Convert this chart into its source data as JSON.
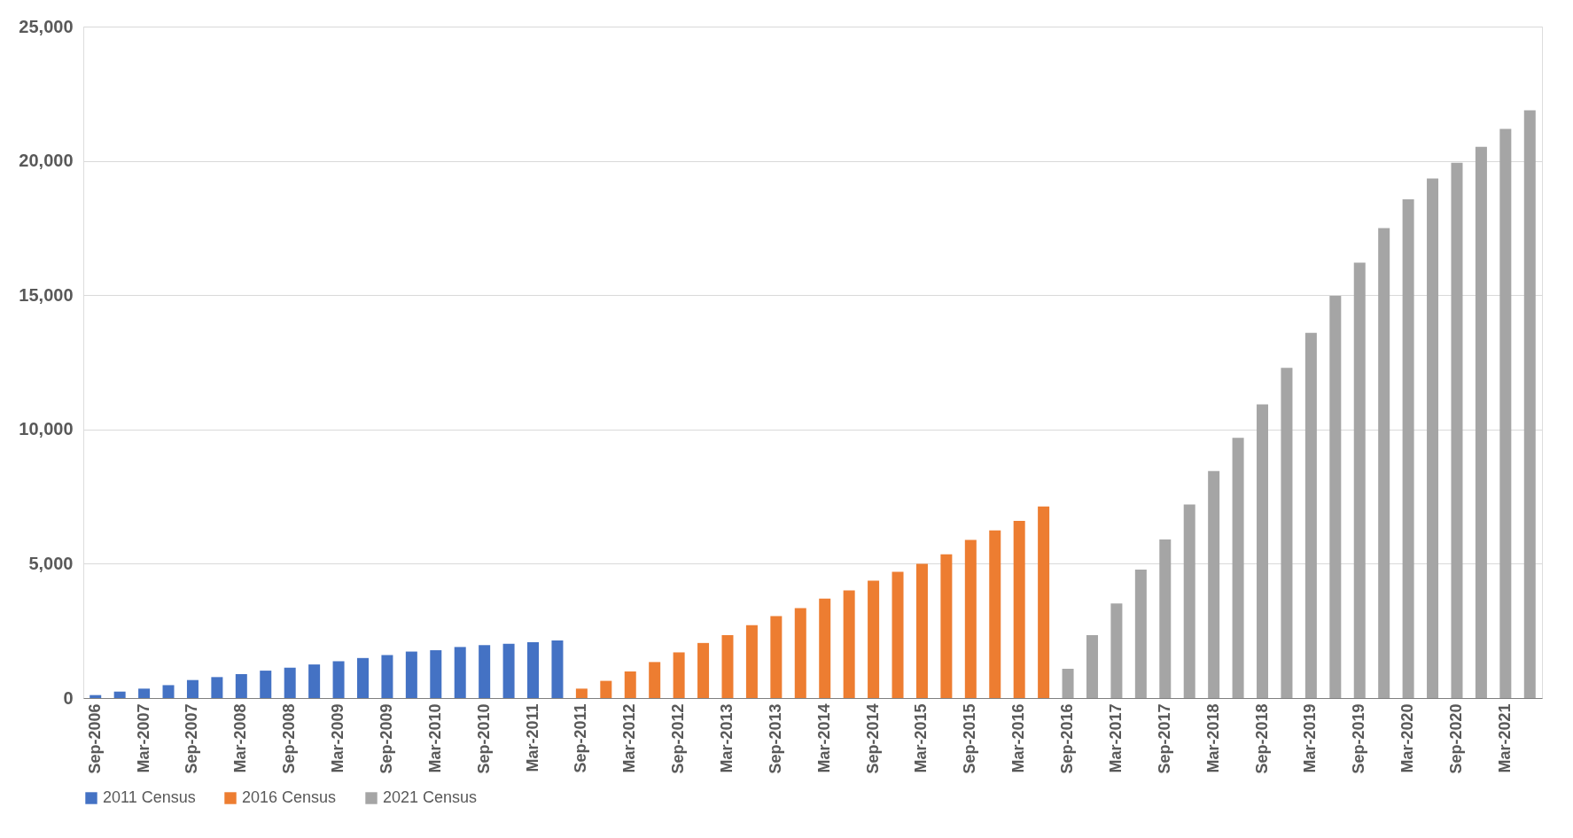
{
  "chart_data": {
    "type": "bar",
    "categories": [
      "Sep-2006",
      null,
      "Mar-2007",
      null,
      "Sep-2007",
      null,
      "Mar-2008",
      null,
      "Sep-2008",
      null,
      "Mar-2009",
      null,
      "Sep-2009",
      null,
      "Mar-2010",
      null,
      "Sep-2010",
      null,
      "Mar-2011",
      null,
      "Sep-2011",
      null,
      "Mar-2012",
      null,
      "Sep-2012",
      null,
      "Mar-2013",
      null,
      "Sep-2013",
      null,
      "Mar-2014",
      null,
      "Sep-2014",
      null,
      "Mar-2015",
      null,
      "Sep-2015",
      null,
      "Mar-2016",
      null,
      "Sep-2016",
      null,
      "Mar-2017",
      null,
      "Sep-2017",
      null,
      "Mar-2018",
      null,
      "Sep-2018",
      null,
      "Mar-2019",
      null,
      "Sep-2019",
      null,
      "Mar-2020",
      null,
      "Sep-2020",
      null,
      "Mar-2021",
      null
    ],
    "series": [
      {
        "name": "2011 Census",
        "color": "#4472c4",
        "values": [
          110,
          240,
          350,
          480,
          670,
          780,
          890,
          1020,
          1130,
          1250,
          1370,
          1490,
          1600,
          1730,
          1780,
          1900,
          1970,
          2020,
          2080,
          2140,
          null,
          null,
          null,
          null,
          null,
          null,
          null,
          null,
          null,
          null,
          null,
          null,
          null,
          null,
          null,
          null,
          null,
          null,
          null,
          null,
          null,
          null,
          null,
          null,
          null,
          null,
          null,
          null,
          null,
          null,
          null,
          null,
          null,
          null,
          null,
          null,
          null,
          null,
          null,
          null
        ]
      },
      {
        "name": "2016 Census",
        "color": "#ed7d31",
        "values": [
          null,
          null,
          null,
          null,
          null,
          null,
          null,
          null,
          null,
          null,
          null,
          null,
          null,
          null,
          null,
          null,
          null,
          null,
          null,
          null,
          350,
          640,
          990,
          1340,
          1700,
          2050,
          2340,
          2710,
          3050,
          3350,
          3700,
          4010,
          4370,
          4700,
          5000,
          5350,
          5890,
          6240,
          6600,
          7130,
          null,
          null,
          null,
          null,
          null,
          null,
          null,
          null,
          null,
          null,
          null,
          null,
          null,
          null,
          null,
          null,
          null,
          null,
          null,
          null
        ]
      },
      {
        "name": "2021 Census",
        "color": "#a5a5a5",
        "values": [
          null,
          null,
          null,
          null,
          null,
          null,
          null,
          null,
          null,
          null,
          null,
          null,
          null,
          null,
          null,
          null,
          null,
          null,
          null,
          null,
          null,
          null,
          null,
          null,
          null,
          null,
          null,
          null,
          null,
          null,
          null,
          null,
          null,
          null,
          null,
          null,
          null,
          null,
          null,
          null,
          1090,
          2340,
          3520,
          4780,
          5900,
          7210,
          8450,
          9690,
          10930,
          12290,
          13600,
          14970,
          16210,
          17500,
          18570,
          19340,
          19930,
          20520,
          21190,
          21880
        ]
      }
    ],
    "ylim": [
      0,
      25000
    ],
    "yticks": [
      0,
      {
        "value": 5000,
        "label": "5,000"
      },
      {
        "value": 10000,
        "label": "10,000"
      },
      {
        "value": 15000,
        "label": "15,000"
      },
      {
        "value": 20000,
        "label": "20,000"
      },
      {
        "value": 25000,
        "label": "25,000"
      }
    ],
    "grid": "y",
    "legend": "bottom"
  }
}
